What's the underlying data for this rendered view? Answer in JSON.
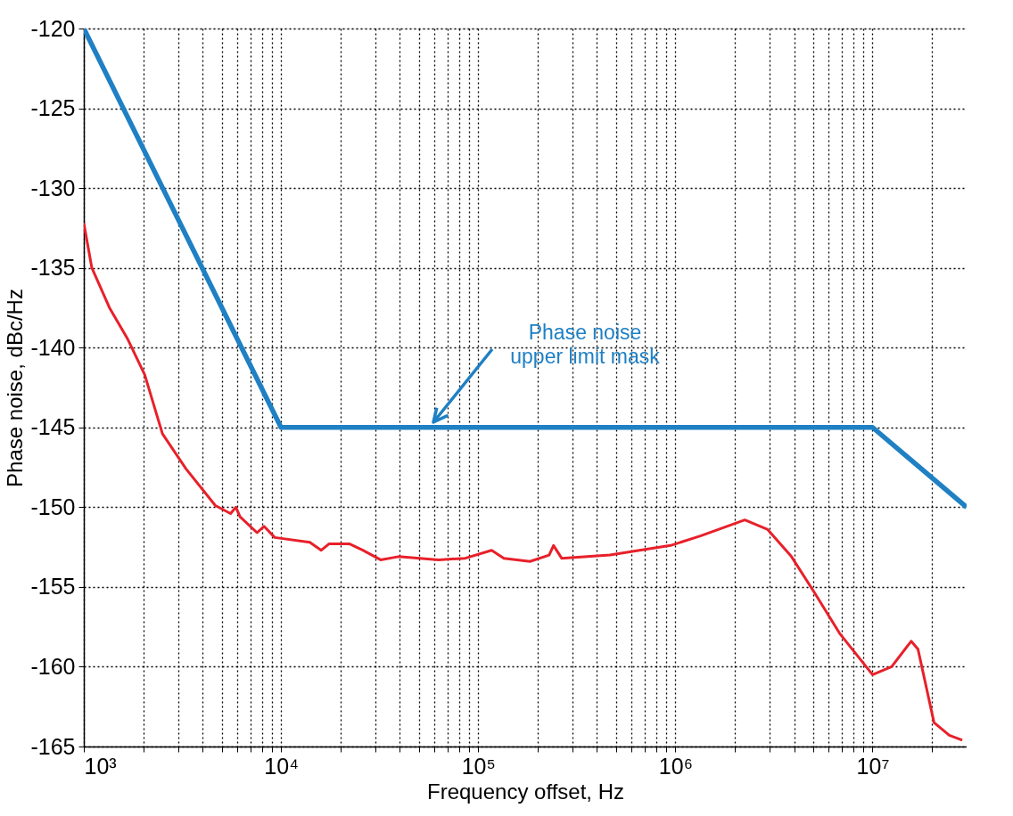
{
  "chart_data": {
    "type": "line",
    "xlabel": "Frequency offset, Hz",
    "ylabel": "Phase noise, dBc/Hz",
    "xlim": [
      1000,
      30000000
    ],
    "ylim": [
      -165,
      -120
    ],
    "xticks": [
      {
        "value": 1000,
        "label": "10³"
      },
      {
        "value": 2000,
        "label": null
      },
      {
        "value": 3000,
        "label": null
      },
      {
        "value": 4000,
        "label": null
      },
      {
        "value": 5000,
        "label": null
      },
      {
        "value": 6000,
        "label": null
      },
      {
        "value": 7000,
        "label": null
      },
      {
        "value": 8000,
        "label": null
      },
      {
        "value": 9000,
        "label": null
      },
      {
        "value": 10000,
        "label": "10⁴"
      },
      {
        "value": 20000,
        "label": null
      },
      {
        "value": 30000,
        "label": null
      },
      {
        "value": 40000,
        "label": null
      },
      {
        "value": 50000,
        "label": null
      },
      {
        "value": 60000,
        "label": null
      },
      {
        "value": 70000,
        "label": null
      },
      {
        "value": 80000,
        "label": null
      },
      {
        "value": 90000,
        "label": null
      },
      {
        "value": 100000,
        "label": "10⁵"
      },
      {
        "value": 200000,
        "label": null
      },
      {
        "value": 300000,
        "label": null
      },
      {
        "value": 400000,
        "label": null
      },
      {
        "value": 500000,
        "label": null
      },
      {
        "value": 600000,
        "label": null
      },
      {
        "value": 700000,
        "label": null
      },
      {
        "value": 800000,
        "label": null
      },
      {
        "value": 900000,
        "label": null
      },
      {
        "value": 1000000,
        "label": "10⁶"
      },
      {
        "value": 2000000,
        "label": null
      },
      {
        "value": 3000000,
        "label": null
      },
      {
        "value": 4000000,
        "label": null
      },
      {
        "value": 5000000,
        "label": null
      },
      {
        "value": 6000000,
        "label": null
      },
      {
        "value": 7000000,
        "label": null
      },
      {
        "value": 8000000,
        "label": null
      },
      {
        "value": 9000000,
        "label": null
      },
      {
        "value": 10000000,
        "label": "10⁷"
      },
      {
        "value": 20000000,
        "label": null
      }
    ],
    "yticks": [
      -165,
      -160,
      -155,
      -150,
      -145,
      -140,
      -135,
      -130,
      -125,
      -120
    ],
    "log": "x",
    "grid": true,
    "line_style": "solid",
    "marker": "none",
    "series": [
      {
        "color": "#1f80c4",
        "x": [
          1000,
          10000,
          10000000,
          30000000
        ],
        "values": [
          -120,
          -145,
          -145,
          -150
        ]
      },
      {
        "color": "#e8202a",
        "x": [
          1000,
          1098,
          1349,
          1658,
          2036,
          2504,
          3300,
          4646,
          5550,
          5900,
          6200,
          7560,
          8200,
          9300,
          14000,
          16000,
          17500,
          22300,
          26000,
          32000,
          39400,
          63000,
          86000,
          117000,
          135000,
          183000,
          229000,
          241000,
          265000,
          466000,
          945000,
          1340000,
          2250000,
          2940000,
          3880000,
          5100000,
          6800000,
          10000000,
          12500000,
          15700000,
          17000000,
          20500000,
          24500000,
          28500000
        ],
        "values": [
          -132.2,
          -135,
          -137.5,
          -139.4,
          -141.7,
          -145.4,
          -147.6,
          -149.9,
          -150.4,
          -150.0,
          -150.6,
          -151.6,
          -151.2,
          -151.9,
          -152.2,
          -152.7,
          -152.3,
          -152.3,
          -152.7,
          -153.3,
          -153.1,
          -153.3,
          -153.2,
          -152.7,
          -153.2,
          -153.4,
          -153.0,
          -152.4,
          -153.2,
          -153.0,
          -152.4,
          -151.8,
          -150.8,
          -151.4,
          -153.1,
          -155.4,
          -157.9,
          -160.5,
          -160.0,
          -158.4,
          -158.9,
          -163.5,
          -164.3,
          -164.6
        ]
      }
    ],
    "annotations": [
      "Phase noise\nupper limit mask"
    ]
  }
}
